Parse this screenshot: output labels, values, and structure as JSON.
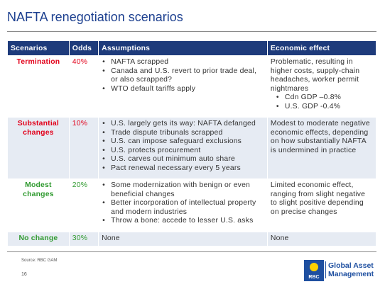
{
  "header": {
    "title": "NAFTA renegotiation scenarios"
  },
  "table": {
    "columns": [
      "Scenarios",
      "Odds",
      "Assumptions",
      "Economic effect"
    ],
    "rows": [
      {
        "scenario": "Termination",
        "odds": "40%",
        "color": "#e2001a",
        "assumptions": [
          "NAFTA scrapped",
          "Canada and U.S. revert to prior trade deal, or also scrapped?",
          "WTO default tariffs apply"
        ],
        "effect": "Problematic, resulting in higher costs, supply-chain headaches, worker permit nightmares",
        "effect_bullets": [
          "Cdn GDP –0.8%",
          "U.S. GDP -0.4%"
        ]
      },
      {
        "scenario": "Substantial changes",
        "odds": "10%",
        "color": "#e2001a",
        "assumptions": [
          "U.S. largely gets its way: NAFTA defanged",
          "Trade dispute tribunals scrapped",
          "U.S. can impose safeguard exclusions",
          "U.S. protects procurement",
          "U.S. carves out minimum auto share",
          "Pact renewal necessary every 5 years"
        ],
        "effect": "Modest to moderate negative economic effects, depending on how substantially NAFTA is undermined in practice",
        "effect_bullets": []
      },
      {
        "scenario": "Modest changes",
        "odds": "20%",
        "color": "#2f9a2f",
        "assumptions": [
          "Some modernization with benign or even beneficial changes",
          "Better incorporation of intellectual property and modern industries",
          "Throw a bone: accede to lesser U.S. asks"
        ],
        "effect": "Limited economic effect, ranging from slight negative to slight positive depending on precise changes",
        "effect_bullets": []
      },
      {
        "scenario": "No change",
        "odds": "30%",
        "color": "#2f9a2f",
        "assumptions": [],
        "assumptions_text": "None",
        "effect": "None",
        "effect_bullets": []
      }
    ]
  },
  "footer": {
    "source": "Source: RBC GAM",
    "page": "16",
    "logo_mark": "RBC",
    "logo_lines": [
      "Global Asset",
      "Management"
    ]
  }
}
